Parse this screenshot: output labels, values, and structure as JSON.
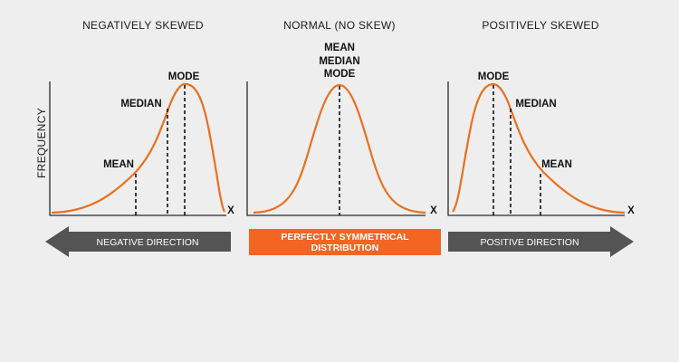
{
  "titles": {
    "left": "NEGATIVELY SKEWED",
    "middle": "NORMAL (NO SKEW)",
    "right": "POSITIVELY SKEWED"
  },
  "y_axis_label": "FREQUENCY",
  "x_axis_label": "X",
  "left_panel": {
    "mode": "MODE",
    "median": "MEDIAN",
    "mean": "MEAN"
  },
  "middle_panel": {
    "mean": "MEAN",
    "median": "MEDIAN",
    "mode": "MODE"
  },
  "right_panel": {
    "mode": "MODE",
    "median": "MEDIAN",
    "mean": "MEAN"
  },
  "bottom": {
    "negative": "NEGATIVE DIRECTION",
    "center_line1": "PERFECTLY SYMMETRICAL",
    "center_line2": "DISTRIBUTION",
    "positive": "POSITIVE DIRECTION"
  },
  "colors": {
    "curve": "#e8701f",
    "center_box": "#f26522",
    "arrows": "#545454",
    "background": "#eeeeee"
  }
}
